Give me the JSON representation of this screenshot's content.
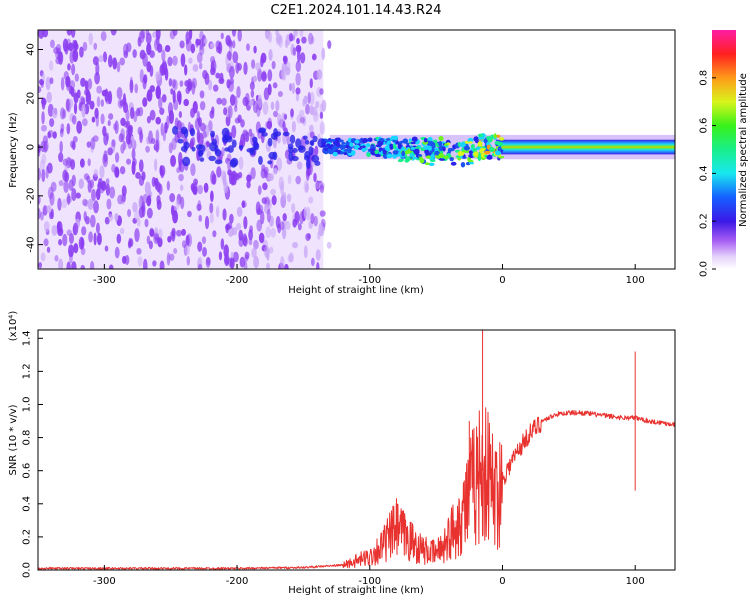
{
  "title": "C2E1.2024.101.14.43.R24",
  "colors": {
    "snr_line": "#e8322f",
    "spectrogram_noise": "#8a3cf0",
    "spectrogram_band": "#2a22e8"
  },
  "chart_data": [
    {
      "type": "heatmap",
      "name": "spectrogram",
      "xlabel": "Height of straight line (km)",
      "ylabel": "Frequency (Hz)",
      "xlim": [
        -350,
        130
      ],
      "ylim": [
        -50,
        48
      ],
      "xticks": [
        "-300",
        "-200",
        "-100",
        "0",
        "100"
      ],
      "yticks": [
        "-40",
        "-20",
        "0",
        "20",
        "40"
      ],
      "colorbar": {
        "label": "Normalized spectral amplitude",
        "range": [
          0.0,
          1.0
        ],
        "ticks": [
          "0.0",
          "0.2",
          "0.4",
          "0.6",
          "0.8"
        ],
        "colormap": "rainbow (white-purple-blue-cyan-green-yellow-red-magenta)"
      },
      "features": {
        "noise_region_height_km": [
          -350,
          -135
        ],
        "signal_band_center_hz": 0,
        "signal_band_halfwidth_hz": 3
      }
    },
    {
      "type": "line",
      "name": "snr",
      "xlabel": "Height of straight line (km)",
      "ylabel": "SNR (10 * v/v)",
      "y_multiplier": "(x10⁴)",
      "xlim": [
        -350,
        130
      ],
      "ylim": [
        0,
        1.45
      ],
      "xticks": [
        "-300",
        "-200",
        "-100",
        "0",
        "100"
      ],
      "yticks": [
        "0.0",
        "0.2",
        "0.4",
        "0.6",
        "0.8",
        "1.0",
        "1.2",
        "1.4"
      ],
      "series": [
        {
          "x": [
            -350,
            -300,
            -250,
            -200,
            -150,
            -120,
            -100,
            -90,
            -80,
            -70,
            -60,
            -50,
            -40,
            -30,
            -25,
            -20,
            -15,
            -10,
            -5,
            0,
            10,
            20,
            30,
            40,
            50,
            60,
            70,
            80,
            90,
            100,
            110,
            120,
            130
          ],
          "y": [
            0.01,
            0.01,
            0.01,
            0.01,
            0.015,
            0.03,
            0.08,
            0.15,
            0.25,
            0.18,
            0.12,
            0.1,
            0.2,
            0.35,
            0.45,
            0.55,
            0.6,
            0.55,
            0.45,
            0.55,
            0.7,
            0.82,
            0.9,
            0.94,
            0.95,
            0.95,
            0.94,
            0.93,
            0.92,
            0.92,
            0.9,
            0.89,
            0.88
          ]
        }
      ],
      "spikes": [
        {
          "x": -15,
          "y": 1.45
        },
        {
          "x": 100,
          "y": 1.32
        },
        {
          "x": 100,
          "y": 0.48
        },
        {
          "x": -80,
          "y": 0.4
        },
        {
          "x": -25,
          "y": 0.9
        }
      ]
    }
  ]
}
